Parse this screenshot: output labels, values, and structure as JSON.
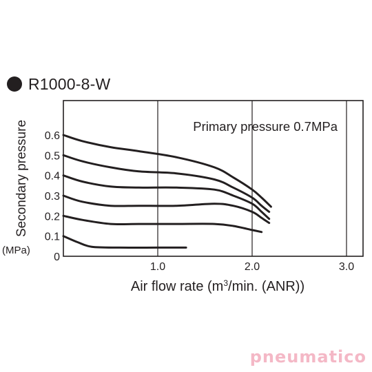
{
  "header": {
    "model": "R1000-8-W"
  },
  "watermark": {
    "text": "pneumatico",
    "color": "#f4b8c6"
  },
  "chart_data": {
    "type": "line",
    "title": "",
    "annotation": "Primary pressure 0.7MPa",
    "xlabel": "Air flow rate (m³/min. (ANR))",
    "ylabel": "Secondary pressure",
    "yunit": "(MPa)",
    "xlim": [
      0,
      3.2
    ],
    "ylim": [
      0,
      0.65
    ],
    "x_ticks": [
      {
        "value": 1.0,
        "label": "1.0"
      },
      {
        "value": 2.0,
        "label": "2.0"
      },
      {
        "value": 3.0,
        "label": "3.0"
      }
    ],
    "y_ticks": [
      {
        "value": 0,
        "label": "0"
      },
      {
        "value": 0.1,
        "label": "0.1"
      },
      {
        "value": 0.2,
        "label": "0.2"
      },
      {
        "value": 0.3,
        "label": "0.3"
      },
      {
        "value": 0.4,
        "label": "0.4"
      },
      {
        "value": 0.5,
        "label": "0.5"
      },
      {
        "value": 0.6,
        "label": "0.6"
      }
    ],
    "grid": {
      "vertical": [
        1.0,
        2.0,
        3.0
      ],
      "horizontal": false
    },
    "line_color": "#231f20",
    "series": [
      {
        "x": [
          0,
          0.2,
          0.5,
          0.8,
          1.2,
          1.6,
          1.8,
          2.0,
          2.1,
          2.2
        ],
        "y": [
          0.6,
          0.57,
          0.54,
          0.52,
          0.49,
          0.44,
          0.39,
          0.33,
          0.29,
          0.245
        ]
      },
      {
        "x": [
          0,
          0.2,
          0.5,
          0.8,
          1.2,
          1.6,
          1.8,
          2.0,
          2.1,
          2.18
        ],
        "y": [
          0.5,
          0.47,
          0.44,
          0.42,
          0.41,
          0.38,
          0.34,
          0.29,
          0.25,
          0.22
        ]
      },
      {
        "x": [
          0,
          0.2,
          0.5,
          0.8,
          1.2,
          1.6,
          1.8,
          2.0,
          2.1,
          2.18
        ],
        "y": [
          0.4,
          0.37,
          0.345,
          0.34,
          0.34,
          0.33,
          0.3,
          0.26,
          0.22,
          0.185
        ]
      },
      {
        "x": [
          0,
          0.2,
          0.5,
          0.8,
          1.2,
          1.6,
          1.8,
          2.0,
          2.1,
          2.18
        ],
        "y": [
          0.3,
          0.27,
          0.25,
          0.25,
          0.25,
          0.26,
          0.25,
          0.22,
          0.19,
          0.165
        ]
      },
      {
        "x": [
          0,
          0.2,
          0.5,
          0.8,
          1.2,
          1.6,
          1.8,
          2.0,
          2.1
        ],
        "y": [
          0.2,
          0.18,
          0.16,
          0.16,
          0.16,
          0.16,
          0.15,
          0.13,
          0.12
        ]
      },
      {
        "x": [
          0,
          0.15,
          0.3,
          0.6,
          1.0,
          1.3
        ],
        "y": [
          0.1,
          0.07,
          0.047,
          0.043,
          0.043,
          0.043
        ]
      }
    ]
  }
}
